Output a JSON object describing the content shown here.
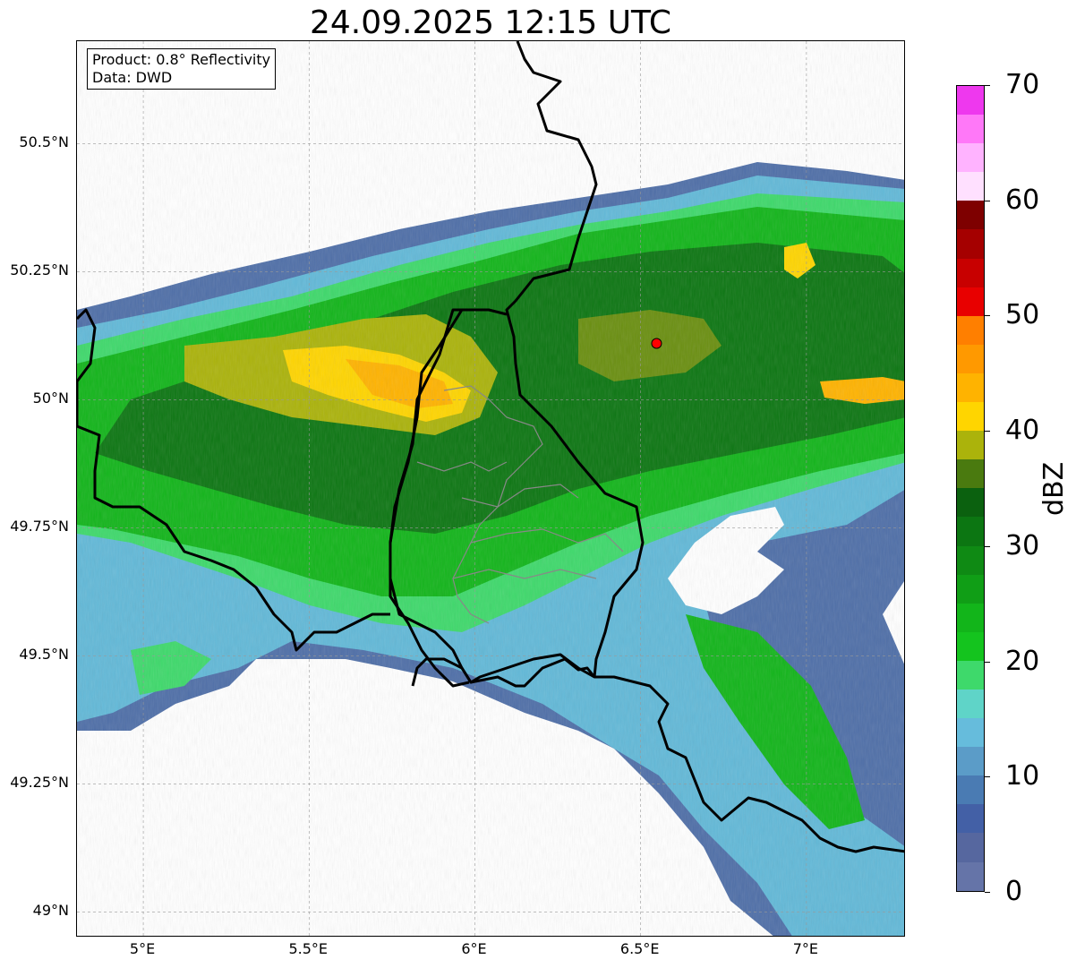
{
  "title": "24.09.2025 12:15 UTC",
  "info": {
    "product": "Product: 0.8° Reflectivity",
    "source": "Data: DWD"
  },
  "map": {
    "lon_range": [
      4.8,
      7.3
    ],
    "lat_range": [
      48.95,
      50.7
    ],
    "lon_ticks": [
      {
        "value": 5.0,
        "label": "5°E"
      },
      {
        "value": 5.5,
        "label": "5.5°E"
      },
      {
        "value": 6.0,
        "label": "6°E"
      },
      {
        "value": 6.5,
        "label": "6.5°E"
      },
      {
        "value": 7.0,
        "label": "7°E"
      }
    ],
    "lat_ticks": [
      {
        "value": 50.5,
        "label": "50.5°N"
      },
      {
        "value": 50.25,
        "label": "50.25°N"
      },
      {
        "value": 50.0,
        "label": "50°N"
      },
      {
        "value": 49.75,
        "label": "49.75°N"
      },
      {
        "value": 49.5,
        "label": "49.5°N"
      },
      {
        "value": 49.25,
        "label": "49.25°N"
      },
      {
        "value": 49.0,
        "label": "49°N"
      }
    ],
    "radar_site": {
      "lon": 6.548,
      "lat": 50.11,
      "color": "#ff0000"
    },
    "grid": true
  },
  "colorbar": {
    "label": "dBZ",
    "min": 0,
    "max": 70,
    "ticks": [
      "0",
      "10",
      "20",
      "30",
      "40",
      "50",
      "60",
      "70"
    ],
    "colors": [
      "#6574a8",
      "#56679f",
      "#4360a6",
      "#4a7bb3",
      "#5b9cc8",
      "#66bcdc",
      "#5fd4c8",
      "#3ed96b",
      "#14c41e",
      "#12b51a",
      "#109e16",
      "#0f8a14",
      "#0c7612",
      "#0b610f",
      "#4a7a0f",
      "#abb30b",
      "#ffd500",
      "#ffb300",
      "#ff9900",
      "#ff7f00",
      "#e80000",
      "#c80000",
      "#a50000",
      "#7e0000",
      "#ffe0ff",
      "#ffb3ff",
      "#ff78f8",
      "#ee38ee"
    ]
  }
}
